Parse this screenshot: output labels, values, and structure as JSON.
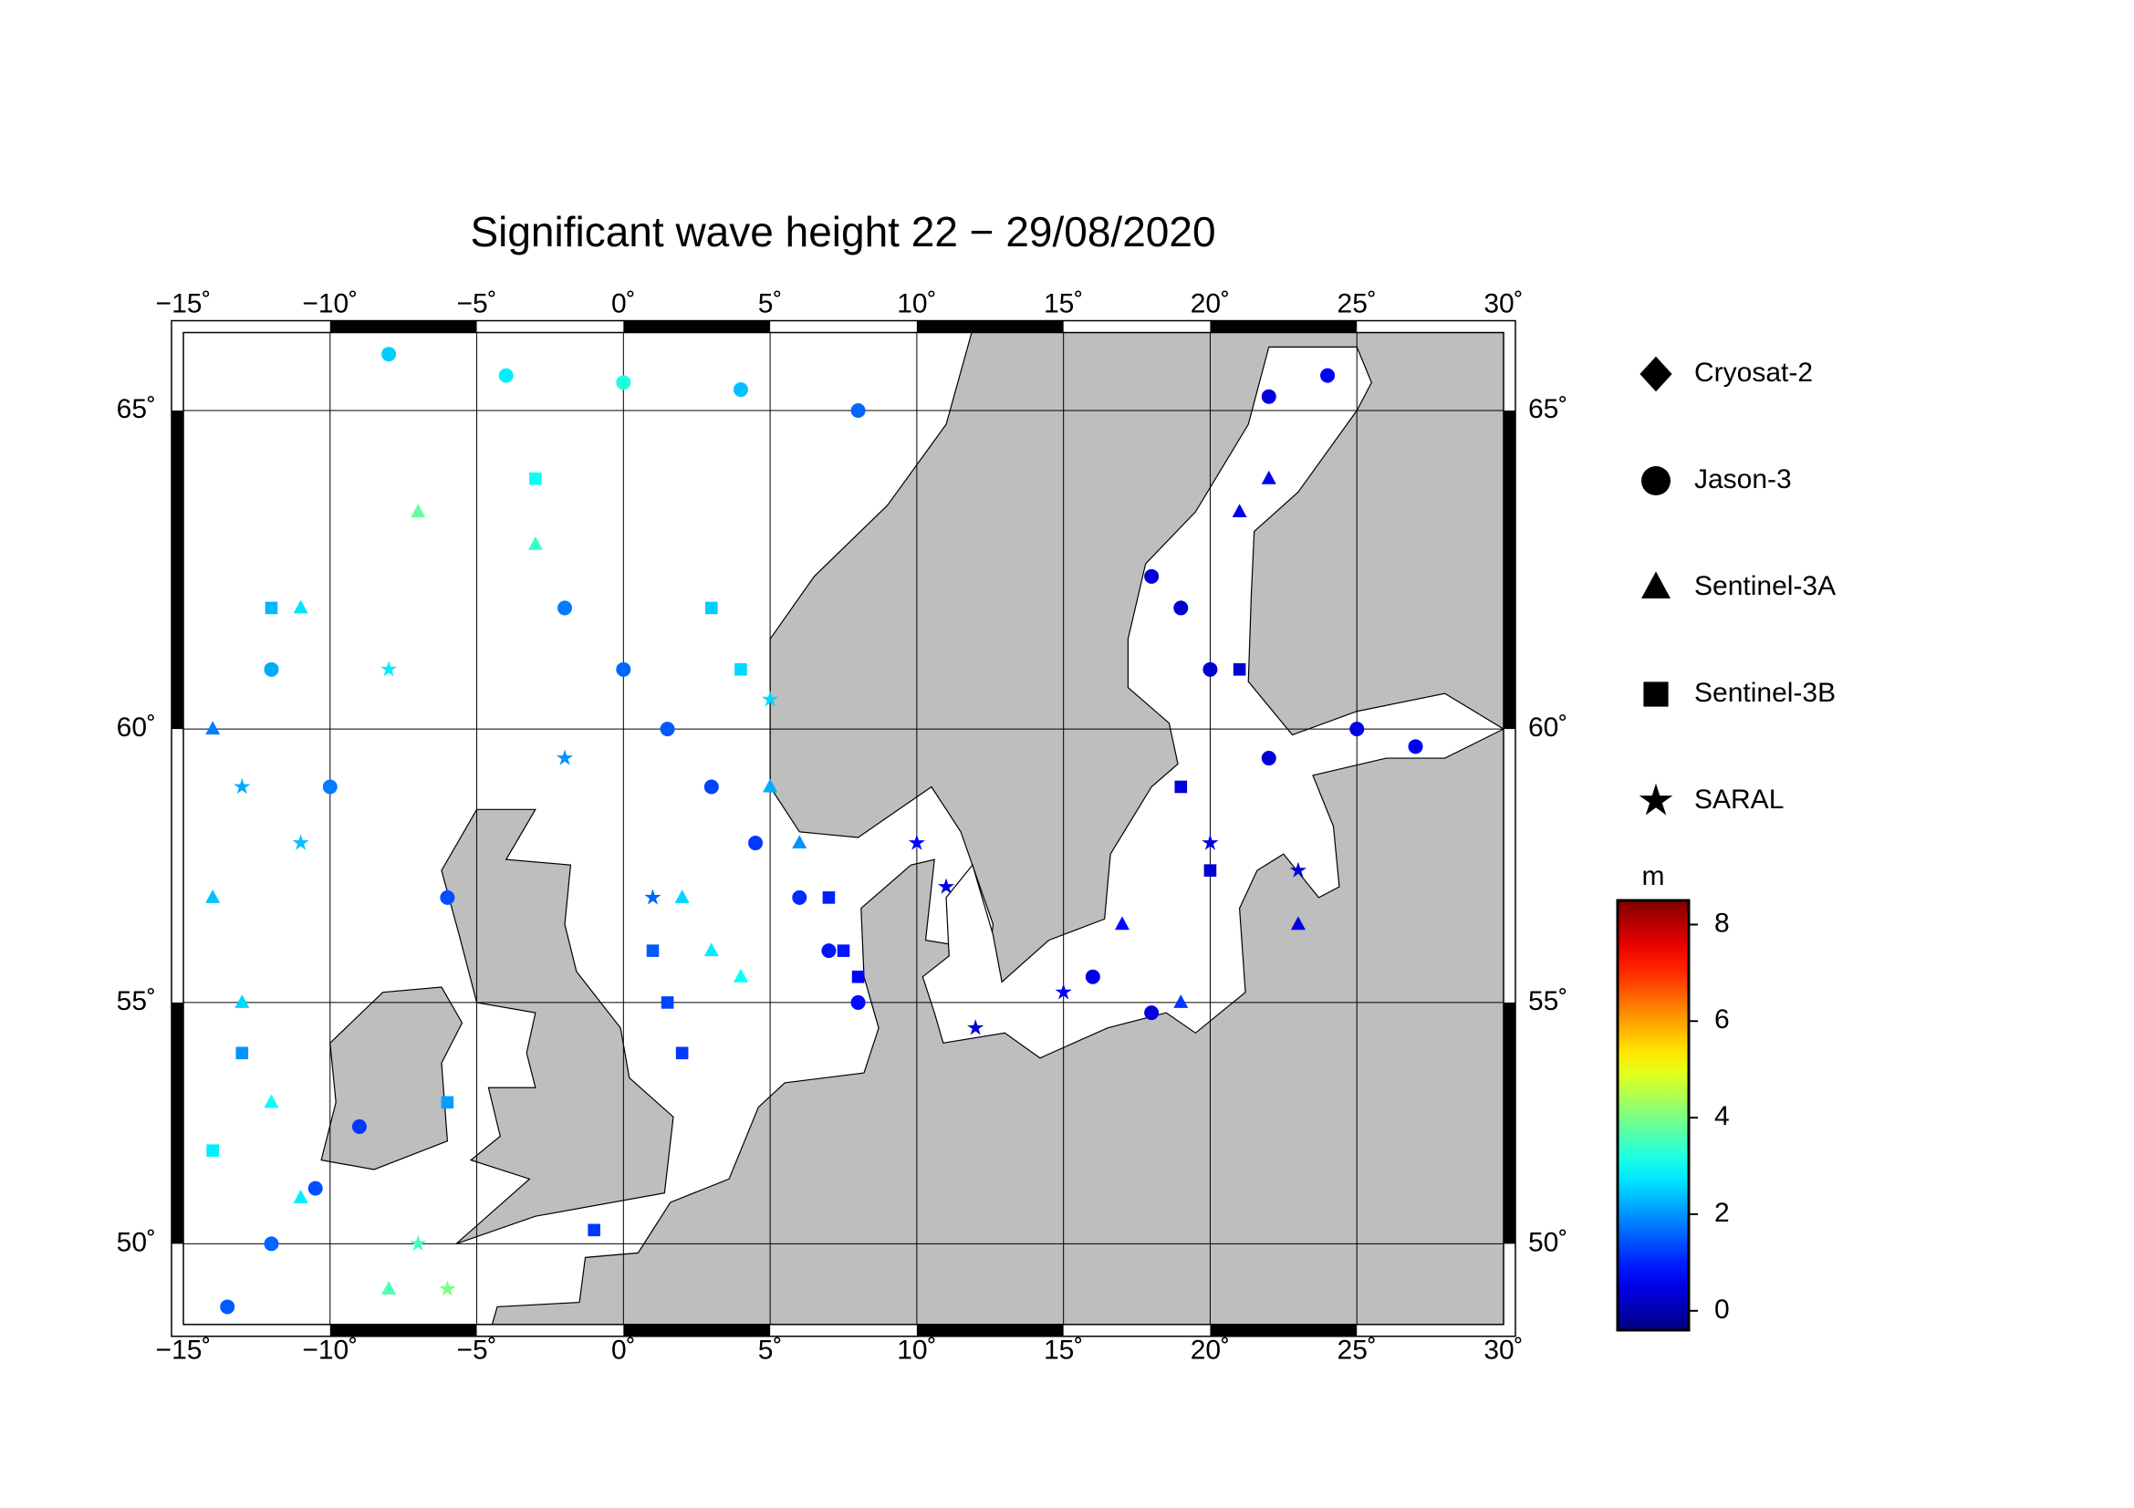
{
  "chart_data": {
    "type": "map",
    "title": "Significant wave height 22 − 29/08/2020",
    "xlim": [
      -15,
      30
    ],
    "ylim": [
      48.2,
      66.1
    ],
    "xticks": [
      {
        "value": -15,
        "label": "−15˚"
      },
      {
        "value": -10,
        "label": "−10˚"
      },
      {
        "value": -5,
        "label": "−5˚"
      },
      {
        "value": 0,
        "label": "0˚"
      },
      {
        "value": 5,
        "label": "5˚"
      },
      {
        "value": 10,
        "label": "10˚"
      },
      {
        "value": 15,
        "label": "15˚"
      },
      {
        "value": 20,
        "label": "20˚"
      },
      {
        "value": 25,
        "label": "25˚"
      },
      {
        "value": 30,
        "label": "30˚"
      }
    ],
    "yticks": [
      {
        "value": 50,
        "label": "50˚"
      },
      {
        "value": 55,
        "label": "55˚"
      },
      {
        "value": 60,
        "label": "60˚"
      },
      {
        "value": 65,
        "label": "65˚"
      }
    ],
    "colorbar": {
      "label": "m",
      "lim": [
        -0.4,
        8.5
      ],
      "ticks": [
        0,
        2,
        4,
        6,
        8
      ]
    },
    "series": [
      {
        "name": "Cryosat-2",
        "marker": "diamond",
        "x": [],
        "y": [],
        "values": []
      },
      {
        "name": "Jason-3",
        "marker": "circle",
        "x": [
          -2,
          0,
          1.5,
          3,
          4.5,
          6,
          7,
          8,
          -13.5,
          -12,
          -10.5,
          -9,
          -8,
          -4,
          0,
          4,
          8,
          18,
          19,
          20,
          22,
          25,
          27,
          22,
          24,
          16,
          18,
          -12,
          -10,
          -6
        ],
        "y": [
          62,
          61,
          60,
          59,
          58,
          57,
          56,
          55,
          48.6,
          50,
          51.2,
          52.5,
          65.8,
          65.5,
          65.4,
          65.3,
          65,
          62.5,
          62,
          61,
          59.5,
          60,
          59.7,
          65.2,
          65.5,
          55.5,
          54.8,
          61,
          59,
          57
        ],
        "values": [
          1.8,
          1.6,
          1.5,
          1.3,
          1.2,
          1.1,
          0.9,
          0.8,
          1.5,
          1.6,
          1.4,
          1.2,
          2.5,
          2.8,
          3.2,
          2.4,
          1.6,
          0.4,
          0.3,
          0.3,
          0.4,
          0.5,
          0.6,
          0.4,
          0.6,
          0.5,
          0.4,
          2.2,
          1.8,
          1.4
        ]
      },
      {
        "name": "Sentinel-3A",
        "marker": "triangle",
        "x": [
          -14,
          -13,
          -12,
          -11,
          -8,
          2,
          3,
          4,
          -14,
          -11,
          -7,
          -3,
          22,
          21,
          17,
          19,
          5,
          6,
          23
        ],
        "y": [
          57,
          55,
          53,
          51,
          49,
          57,
          56,
          55.5,
          60,
          62,
          63.5,
          63,
          64,
          63.5,
          56.5,
          55,
          59,
          58,
          56.5
        ],
        "values": [
          2.4,
          2.6,
          3.0,
          2.8,
          3.6,
          2.6,
          2.8,
          3.0,
          1.8,
          2.7,
          3.8,
          3.4,
          0.6,
          0.5,
          0.8,
          1.2,
          2.2,
          2.0,
          0.4
        ]
      },
      {
        "name": "Sentinel-3B",
        "marker": "square",
        "x": [
          1,
          1.5,
          2,
          7,
          7.5,
          -14,
          -12,
          -3,
          21,
          19,
          3,
          4,
          -1,
          -13,
          8,
          20,
          -6
        ],
        "y": [
          56,
          55,
          54,
          57,
          56,
          52,
          62,
          64,
          61,
          59,
          62,
          61,
          50.3,
          54,
          55.5,
          57.5,
          53
        ],
        "values": [
          1.5,
          1.3,
          1.2,
          1.0,
          0.9,
          2.8,
          2.3,
          3.0,
          0.3,
          0.4,
          2.5,
          2.6,
          1.2,
          2.0,
          0.7,
          0.3,
          2.1
        ]
      },
      {
        "name": "SARAL",
        "marker": "star",
        "x": [
          -13,
          -11,
          -6,
          -7,
          10,
          11,
          20,
          23,
          1,
          -2,
          5,
          15,
          -8,
          12
        ],
        "y": [
          59,
          58,
          49,
          50,
          58,
          57.2,
          58,
          57.5,
          57,
          59.5,
          60.5,
          55.2,
          61,
          54.5
        ],
        "values": [
          2.2,
          2.4,
          4.0,
          3.5,
          0.7,
          0.5,
          0.4,
          0.3,
          1.6,
          2.0,
          2.6,
          0.6,
          2.8,
          0.4
        ]
      }
    ]
  }
}
